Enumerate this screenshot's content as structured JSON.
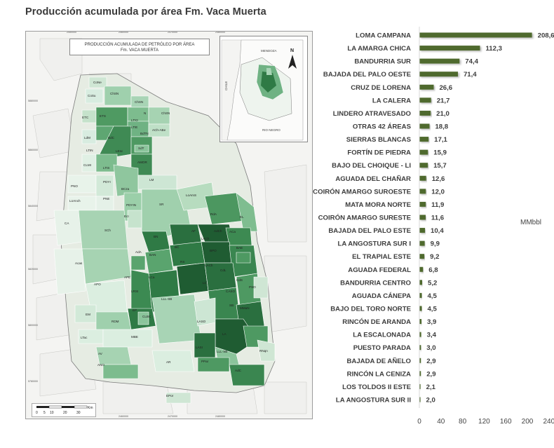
{
  "title": "Producción acumulada por área Fm. Vaca Muerta",
  "map": {
    "title_line1": "PRODUCCIÓN ACUMULADA DE PETRÓLEO POR ÁREA",
    "title_line2": "Fm. VACA MUERTA",
    "scale_unit": "Km",
    "scale_ticks": [
      "0",
      "5",
      "10",
      "20",
      "30"
    ],
    "top_coords": [
      "2450000",
      "2460000",
      "2470000"
    ],
    "top_coords_right": [
      "2480000",
      "2490000",
      "2500000"
    ],
    "left_coords": [
      "5880000",
      "5860000",
      "5840000",
      "5820000",
      "5800000",
      "5780000"
    ],
    "inset_labels": {
      "north": "N",
      "mendoza": "MENDOZA",
      "chile": "CHILE",
      "rio_negro": "RIO NEGRO"
    },
    "area_labels": [
      "CoNe",
      "ChSN",
      "CoSu",
      "ChSN",
      "N",
      "ChSN",
      "ETC",
      "ETS",
      "LTIO",
      "LTIE",
      "BdTN",
      "ACh-ABe",
      "LdM",
      "LTIN",
      "BdC",
      "LEsc",
      "SdT",
      "CLMI",
      "LTIS",
      "AMOR",
      "PNO",
      "PDYI",
      "BCza",
      "LM",
      "LoAnch",
      "PNE",
      "PDYIN",
      "LoAmS",
      "CA",
      "SCh",
      "EcI",
      "SR",
      "RdA",
      "EL",
      "AF",
      "AdCh",
      "ACa",
      "BN",
      "LACh",
      "BC",
      "BPO",
      "BAE",
      "AdA",
      "BAN",
      "RS",
      "LACh",
      "CdL",
      "CdS",
      "APE",
      "LCa",
      "LC",
      "CASO",
      "PSO",
      "Acas",
      "APO",
      "LRSI",
      "SB",
      "MMaN",
      "EM",
      "RDM",
      "EP",
      "LLL-SB",
      "LASO",
      "CLBC",
      "LTac",
      "MBE",
      "LASI",
      "LA",
      "LLL-SB",
      "RNqn",
      "AV",
      "AR",
      "PPar",
      "AdC",
      "ANO",
      "EPor"
    ]
  },
  "chart_data": {
    "type": "bar",
    "orientation": "horizontal",
    "categories": [
      "LOMA CAMPANA",
      "LA AMARGA CHICA",
      "BANDURRIA SUR",
      "BAJADA DEL PALO OESTE",
      "CRUZ DE LORENA",
      "LA CALERA",
      "LINDERO ATRAVESADO",
      "OTRAS 42 ÁREAS",
      "SIERRAS BLANCAS",
      "FORTÍN DE PIEDRA",
      "BAJO DEL CHOIQUE - LI",
      "AGUADA DEL CHAÑAR",
      "COIRÓN AMARGO SUROESTE",
      "MATA MORA NORTE",
      "COIRÓN AMARGO SURESTE",
      "BAJADA DEL PALO ESTE",
      "LA ANGOSTURA SUR I",
      "EL TRAPIAL ESTE",
      "AGUADA FEDERAL",
      "BANDURRIA CENTRO",
      "AGUADA CÁNEPA",
      "BAJO DEL TORO NORTE",
      "RINCÓN DE ARANDA",
      "LA ESCALONADA",
      "PUESTO PARADA",
      "BAJADA DE AÑELO",
      "RINCÓN LA CENIZA",
      "LOS TOLDOS II ESTE",
      "LA ANGOSTURA SUR II"
    ],
    "values": [
      208.6,
      112.3,
      74.4,
      71.4,
      26.6,
      21.7,
      21.0,
      18.8,
      17.1,
      15.9,
      15.7,
      12.6,
      12.0,
      11.9,
      11.6,
      10.4,
      9.9,
      9.2,
      6.8,
      5.2,
      4.5,
      4.5,
      3.9,
      3.4,
      3.0,
      2.9,
      2.9,
      2.1,
      2.0
    ],
    "value_labels": [
      "208,6",
      "112,3",
      "74,4",
      "71,4",
      "26,6",
      "21,7",
      "21,0",
      "18,8",
      "17,1",
      "15,9",
      "15,7",
      "12,6",
      "12,0",
      "11,9",
      "11,6",
      "10,4",
      "9,9",
      "9,2",
      "6,8",
      "5,2",
      "4,5",
      "4,5",
      "3,9",
      "3,4",
      "3,0",
      "2,9",
      "2,9",
      "2,1",
      "2,0"
    ],
    "xlim": [
      0,
      240
    ],
    "xticks": [
      0,
      40,
      80,
      120,
      160,
      200,
      240
    ],
    "xtick_labels": [
      "0",
      "40",
      "80",
      "120",
      "160",
      "200",
      "240"
    ],
    "unit": "MMbbl",
    "bar_color": "#4f6b2d",
    "grid": false
  }
}
